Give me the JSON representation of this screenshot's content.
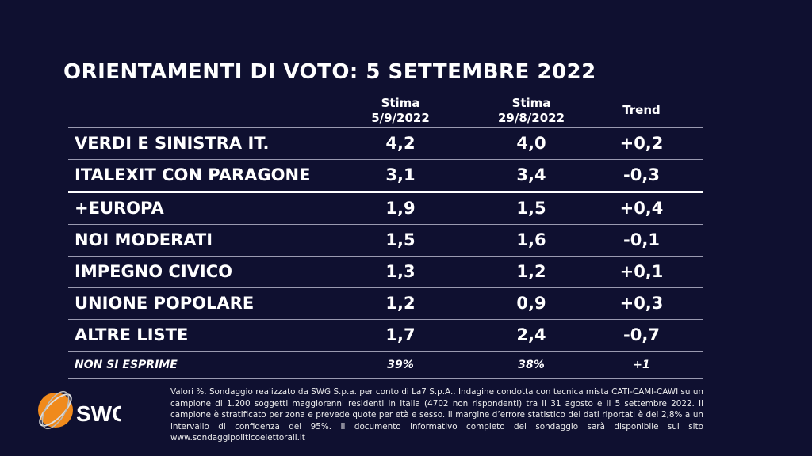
{
  "title": "ORIENTAMENTI DI VOTO: 5 SETTEMBRE 2022",
  "headers": {
    "col1": "Stima",
    "col1b": "5/9/2022",
    "col2": "Stima",
    "col2b": "29/8/2022",
    "col3": "Trend"
  },
  "rows": [
    {
      "name": "VERDI E SINISTRA IT.",
      "v1": "4,2",
      "v2": "4,0",
      "trend": "+0,2"
    },
    {
      "name": "ITALEXIT CON PARAGONE",
      "v1": "3,1",
      "v2": "3,4",
      "trend": "-0,3"
    },
    {
      "name": "+EUROPA",
      "v1": "1,9",
      "v2": "1,5",
      "trend": "+0,4"
    },
    {
      "name": "NOI MODERATI",
      "v1": "1,5",
      "v2": "1,6",
      "trend": "-0,1"
    },
    {
      "name": "IMPEGNO CIVICO",
      "v1": "1,3",
      "v2": "1,2",
      "trend": "+0,1"
    },
    {
      "name": "UNIONE POPOLARE",
      "v1": "1,2",
      "v2": "0,9",
      "trend": "+0,3"
    },
    {
      "name": "ALTRE LISTE",
      "v1": "1,7",
      "v2": "2,4",
      "trend": "-0,7"
    },
    {
      "name": "NON SI ESPRIME",
      "v1": "39%",
      "v2": "38%",
      "trend": "+1"
    }
  ],
  "logo_text": "SWG",
  "footnote": "Valori %. Sondaggio realizzato da SWG S.p.a. per conto di La7 S.p.A.. Indagine condotta con tecnica mista CATI-CAMI-CAWI su un campione di 1.200 soggetti maggiorenni residenti in Italia (4702 non rispondenti) tra il 31 agosto e il 5 settembre 2022. Il campione è stratificato per zona e prevede quote per età e sesso. Il margine d’errore statistico dei dati riportati è del 2,8% a un intervallo di confidenza del 95%. Il documento informativo completo del sondaggio sarà disponibile sul sito www.sondaggipoliticoelettorali.it"
}
